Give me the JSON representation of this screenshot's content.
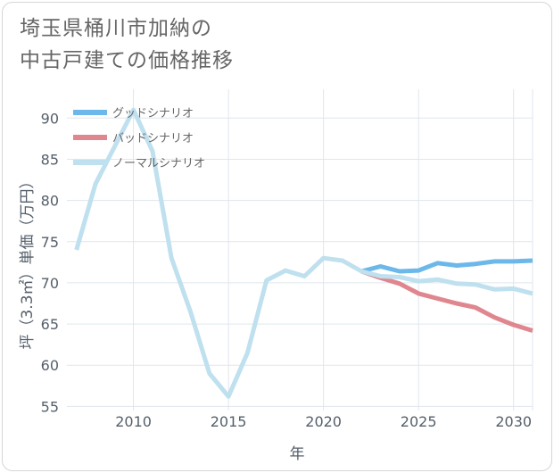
{
  "title_lines": [
    "埼玉県桶川市加納の",
    "中古戸建ての価格推移"
  ],
  "chart_data": {
    "type": "line",
    "title": "埼玉県桶川市加納の中古戸建ての価格推移",
    "xlabel": "年",
    "ylabel": "坪（3.3㎡）単価（万円）",
    "xlim": [
      2006.5,
      2031
    ],
    "ylim": [
      54.5,
      93.5
    ],
    "xticks": [
      2010,
      2015,
      2020,
      2025,
      2030
    ],
    "yticks": [
      55,
      60,
      65,
      70,
      75,
      80,
      85,
      90
    ],
    "grid": true,
    "legend_position": "top-left",
    "series": [
      {
        "name": "グッドシナリオ",
        "color": "#6cb8ea",
        "x": [
          2022,
          2023,
          2024,
          2025,
          2026,
          2027,
          2028,
          2029,
          2030,
          2031
        ],
        "y": [
          71.4,
          72.0,
          71.4,
          71.5,
          72.4,
          72.1,
          72.3,
          72.6,
          72.6,
          72.7
        ]
      },
      {
        "name": "バッドシナリオ",
        "color": "#e0868f",
        "x": [
          2022,
          2023,
          2024,
          2025,
          2026,
          2027,
          2028,
          2029,
          2030,
          2031
        ],
        "y": [
          71.4,
          70.6,
          69.9,
          68.7,
          68.1,
          67.5,
          67.0,
          65.8,
          64.9,
          64.2
        ]
      },
      {
        "name": "ノーマルシナリオ",
        "color": "#bfe0ee",
        "x": [
          2007,
          2008,
          2009,
          2010,
          2011,
          2012,
          2013,
          2014,
          2015,
          2016,
          2017,
          2018,
          2019,
          2020,
          2021,
          2022,
          2023,
          2024,
          2025,
          2026,
          2027,
          2028,
          2029,
          2030,
          2031
        ],
        "y": [
          74.0,
          82.0,
          86.5,
          91.0,
          86.0,
          73.0,
          66.5,
          59.0,
          56.2,
          61.5,
          70.3,
          71.5,
          70.8,
          73.0,
          72.7,
          71.4,
          70.8,
          70.7,
          70.2,
          70.4,
          69.9,
          69.8,
          69.2,
          69.3,
          68.7
        ]
      }
    ]
  }
}
